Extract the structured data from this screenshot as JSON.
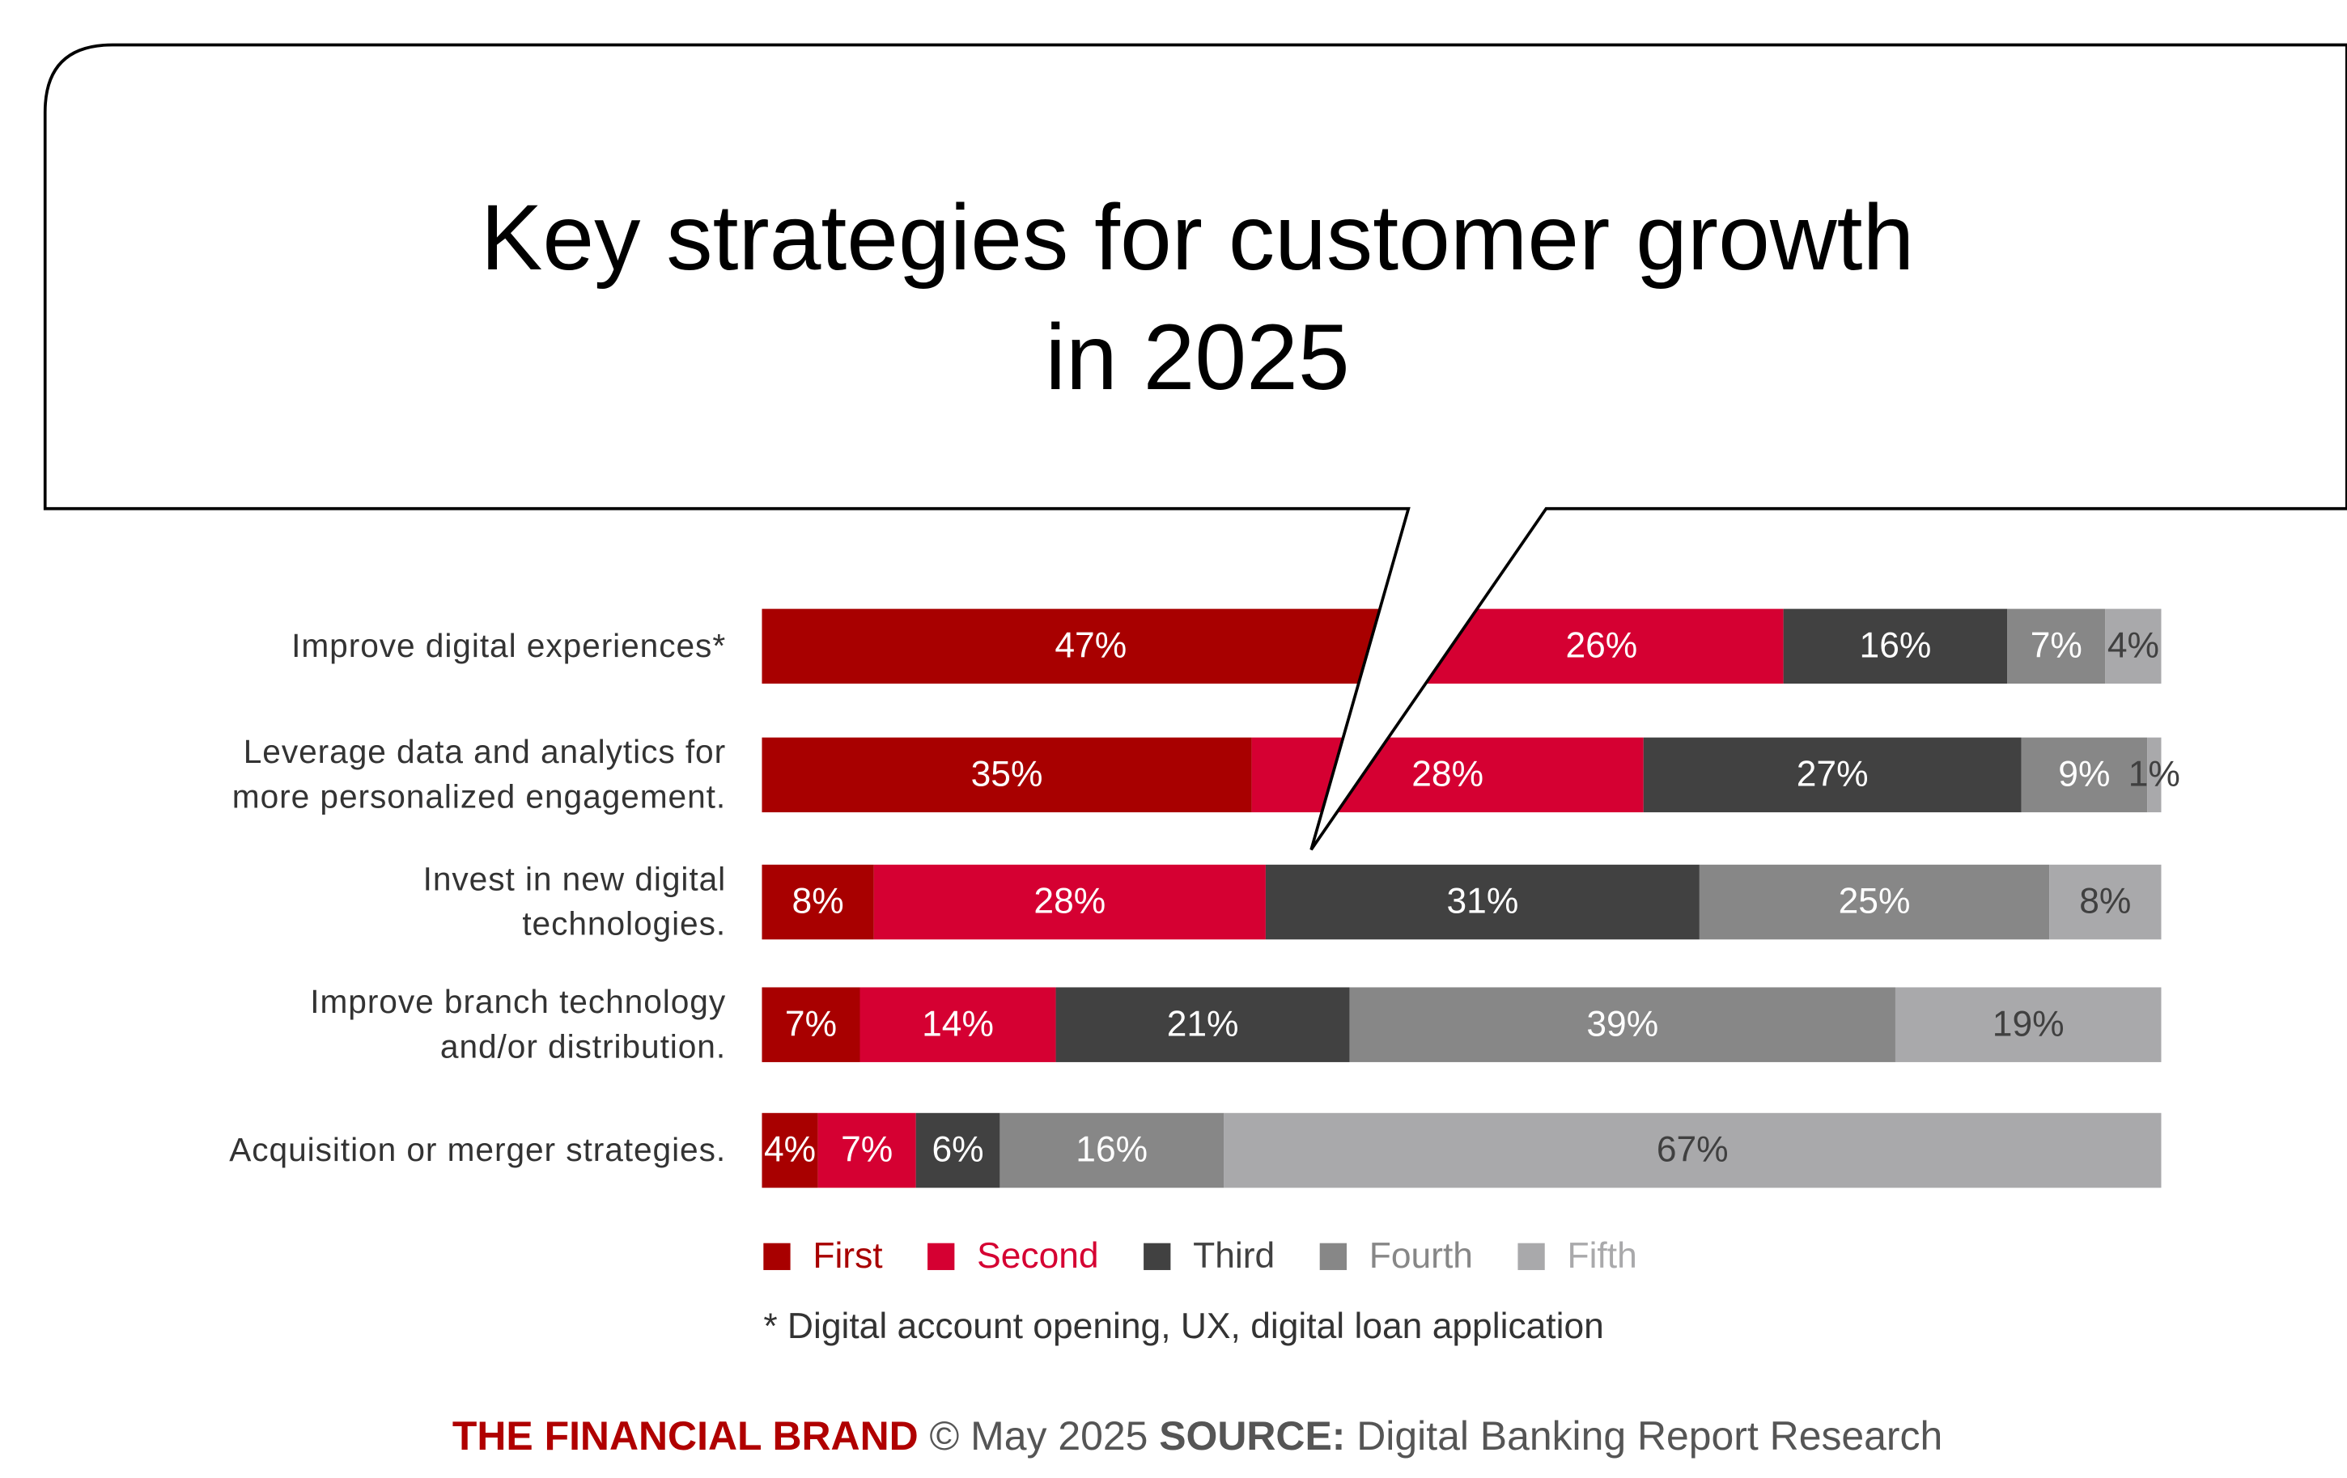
{
  "chart_data": {
    "type": "stacked_bar_horizontal",
    "title": "Key strategies for customer growth in 2025",
    "categories": [
      "Improve digital experiences*",
      "Leverage data and analytics for more personalized engagement.",
      "Invest in new digital technologies.",
      "Improve branch technology and/or distribution.",
      "Acquisition or merger strategies."
    ],
    "xlim": [
      0,
      100
    ],
    "series": [
      {
        "name": "First",
        "color": "#a80000",
        "label_color": "#ffffff",
        "values": [
          47,
          35,
          8,
          7,
          4
        ],
        "value_labels": [
          "47%",
          "35%",
          "8%",
          "7%",
          "4%"
        ]
      },
      {
        "name": "Second",
        "color": "#d50032",
        "label_color": "#ffffff",
        "values": [
          26,
          28,
          28,
          14,
          7
        ],
        "value_labels": [
          "26%",
          "28%",
          "28%",
          "14%",
          "7%"
        ]
      },
      {
        "name": "Third",
        "color": "#414141",
        "label_color": "#ffffff",
        "values": [
          16,
          27,
          31,
          21,
          6
        ],
        "value_labels": [
          "16%",
          "27%",
          "31%",
          "21%",
          "6%"
        ]
      },
      {
        "name": "Fourth",
        "color": "#878787",
        "label_color": "#ffffff",
        "values": [
          7,
          9,
          25,
          39,
          16
        ],
        "value_labels": [
          "7%",
          "9%",
          "25%",
          "39%",
          "16%"
        ]
      },
      {
        "name": "Fifth",
        "color": "#a9a9ab",
        "label_color": "#404040",
        "values": [
          4,
          1,
          8,
          19,
          67
        ],
        "value_labels": [
          "4%",
          "1%",
          "8%",
          "19%",
          "67%"
        ]
      }
    ],
    "footnote": "* Digital account opening, UX, digital loan application",
    "footer": {
      "brand": "THE FINANCIAL BRAND",
      "date": "© May 2025",
      "source_label": "SOURCE:",
      "source": "Digital Banking Report Research"
    }
  }
}
